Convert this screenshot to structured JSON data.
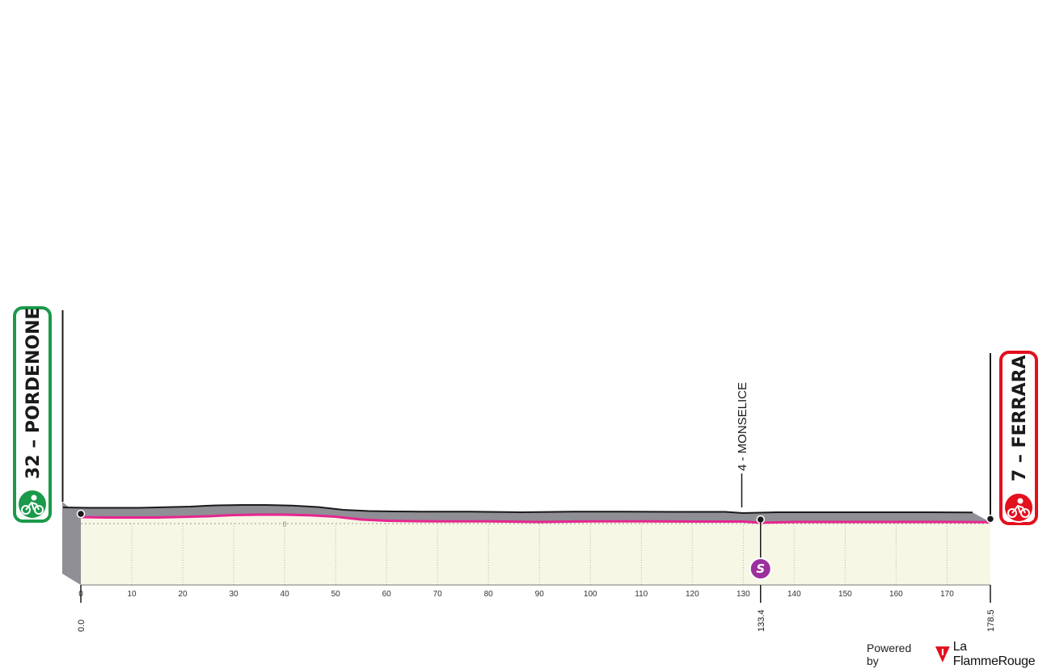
{
  "start": {
    "label": "32 – PORDENONE",
    "color": "#1a9a4a"
  },
  "finish": {
    "label": "7 – FERRARA",
    "color": "#e3101e"
  },
  "waypoint": {
    "label": "4 - MONSELICE",
    "km": 133.4
  },
  "sprint": {
    "letter": "S",
    "km": 133.4,
    "color": "#9b2f9c"
  },
  "chart_data": {
    "type": "area",
    "title": "",
    "xlabel": "",
    "ylabel": "",
    "xlim": [
      0,
      178.5
    ],
    "x_ticks": [
      0,
      10,
      20,
      30,
      40,
      50,
      60,
      70,
      80,
      90,
      100,
      110,
      120,
      130,
      140,
      150,
      160,
      170
    ],
    "x_tick_labels": [
      "0",
      "10",
      "20",
      "30",
      "40",
      "50",
      "60",
      "70",
      "80",
      "90",
      "100",
      "110",
      "120",
      "130",
      "140",
      "150",
      "160",
      "170"
    ],
    "km_markers": [
      "0.0",
      "133.4",
      "178.5"
    ],
    "altitude_ref_label": "0",
    "series": [
      {
        "x": [
          0,
          5,
          10,
          15,
          20,
          25,
          28,
          30,
          35,
          40,
          45,
          50,
          55,
          60,
          65,
          70,
          80,
          90,
          100,
          110,
          120,
          130,
          133.4,
          140,
          150,
          160,
          170,
          178.5
        ],
        "values": [
          32,
          30,
          30,
          30,
          33,
          36,
          40,
          42,
          44,
          44,
          41,
          34,
          20,
          14,
          12,
          11,
          11,
          8,
          11,
          11,
          10,
          10,
          4,
          8,
          8,
          8,
          8,
          7
        ]
      }
    ],
    "colors": {
      "profile_line": "#e6268f",
      "road_surface": "#8f8f95",
      "fill": "#f7f7e6",
      "ground": "#dcdcce"
    }
  },
  "branding": {
    "powered_by": "Powered by",
    "name": "La FlammeRouge"
  }
}
